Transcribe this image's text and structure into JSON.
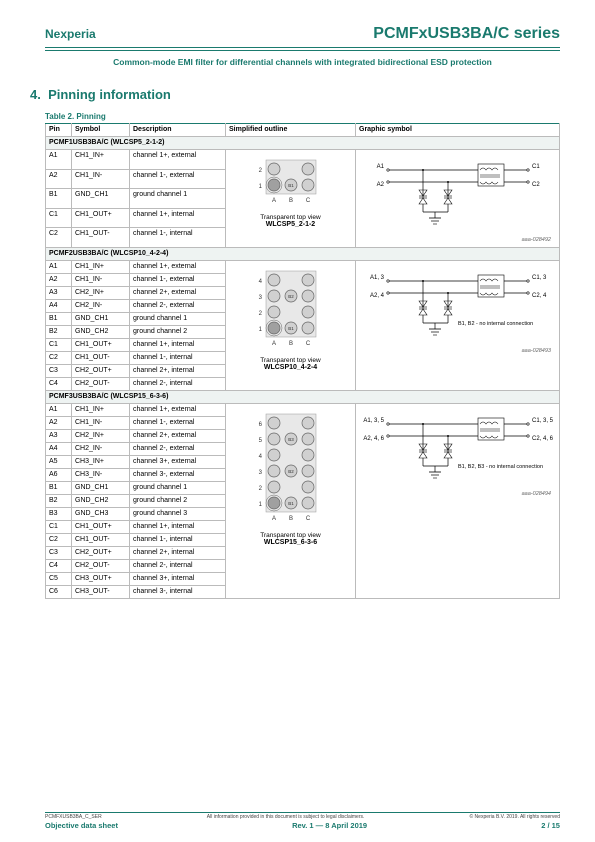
{
  "brand": "Nexperia",
  "title": "PCMFxUSB3BA/C series",
  "subtitle": "Common-mode EMI filter for differential channels with integrated bidirectional ESD protection",
  "section_number": "4.",
  "section_title": "Pinning information",
  "table_caption": "Table 2. Pinning",
  "headers": {
    "pin": "Pin",
    "symbol": "Symbol",
    "description": "Description",
    "outline": "Simplified outline",
    "graphic": "Graphic symbol"
  },
  "outline_caption": "Transparent top view",
  "part1": {
    "name": "PCMF1USB3BA/C (WLCSP5_2-1-2)",
    "pkg": "WLCSP5_2-1-2",
    "rows": [
      {
        "pin": "A1",
        "symbol": "CH1_IN+",
        "desc": "channel 1+, external"
      },
      {
        "pin": "A2",
        "symbol": "CH1_IN-",
        "desc": "channel 1-, external"
      },
      {
        "pin": "B1",
        "symbol": "GND_CH1",
        "desc": "ground channel 1"
      },
      {
        "pin": "C1",
        "symbol": "CH1_OUT+",
        "desc": "channel 1+, internal"
      },
      {
        "pin": "C2",
        "symbol": "CH1_OUT-",
        "desc": "channel 1-, internal"
      }
    ],
    "graphic": {
      "A1": "A1",
      "A2": "A2",
      "C1": "C1",
      "C2": "C2"
    },
    "ref": "aaa-028492"
  },
  "part2": {
    "name": "PCMF2USB3BA/C (WLCSP10_4-2-4)",
    "pkg": "WLCSP10_4-2-4",
    "rows": [
      {
        "pin": "A1",
        "symbol": "CH1_IN+",
        "desc": "channel 1+, external"
      },
      {
        "pin": "A2",
        "symbol": "CH1_IN-",
        "desc": "channel 1-, external"
      },
      {
        "pin": "A3",
        "symbol": "CH2_IN+",
        "desc": "channel 2+, external"
      },
      {
        "pin": "A4",
        "symbol": "CH2_IN-",
        "desc": "channel 2-, external"
      },
      {
        "pin": "B1",
        "symbol": "GND_CH1",
        "desc": "ground channel 1"
      },
      {
        "pin": "B2",
        "symbol": "GND_CH2",
        "desc": "ground channel 2"
      },
      {
        "pin": "C1",
        "symbol": "CH1_OUT+",
        "desc": "channel 1+, internal"
      },
      {
        "pin": "C2",
        "symbol": "CH1_OUT-",
        "desc": "channel 1-, internal"
      },
      {
        "pin": "C3",
        "symbol": "CH2_OUT+",
        "desc": "channel 2+, internal"
      },
      {
        "pin": "C4",
        "symbol": "CH2_OUT-",
        "desc": "channel 2-, internal"
      }
    ],
    "graphic": {
      "A": "A1, 3",
      "A2": "A2, 4",
      "C": "C1, 3",
      "C2": "C2, 4",
      "note": "B1, B2 - no internal connection"
    },
    "ref": "aaa-028493"
  },
  "part3": {
    "name": "PCMF3USB3BA/C (WLCSP15_6-3-6)",
    "pkg": "WLCSP15_6-3-6",
    "rows": [
      {
        "pin": "A1",
        "symbol": "CH1_IN+",
        "desc": "channel 1+, external"
      },
      {
        "pin": "A2",
        "symbol": "CH1_IN-",
        "desc": "channel 1-, external"
      },
      {
        "pin": "A3",
        "symbol": "CH2_IN+",
        "desc": "channel 2+, external"
      },
      {
        "pin": "A4",
        "symbol": "CH2_IN-",
        "desc": "channel 2-, external"
      },
      {
        "pin": "A5",
        "symbol": "CH3_IN+",
        "desc": "channel 3+, external"
      },
      {
        "pin": "A6",
        "symbol": "CH3_IN-",
        "desc": "channel 3-, external"
      },
      {
        "pin": "B1",
        "symbol": "GND_CH1",
        "desc": "ground channel 1"
      },
      {
        "pin": "B2",
        "symbol": "GND_CH2",
        "desc": "ground channel 2"
      },
      {
        "pin": "B3",
        "symbol": "GND_CH3",
        "desc": "ground channel 3"
      },
      {
        "pin": "C1",
        "symbol": "CH1_OUT+",
        "desc": "channel 1+, internal"
      },
      {
        "pin": "C2",
        "symbol": "CH1_OUT-",
        "desc": "channel 1-, internal"
      },
      {
        "pin": "C3",
        "symbol": "CH2_OUT+",
        "desc": "channel 2+, internal"
      },
      {
        "pin": "C4",
        "symbol": "CH2_OUT-",
        "desc": "channel 2-, internal"
      },
      {
        "pin": "C5",
        "symbol": "CH3_OUT+",
        "desc": "channel 3+, internal"
      },
      {
        "pin": "C6",
        "symbol": "CH3_OUT-",
        "desc": "channel 3-, internal"
      }
    ],
    "graphic": {
      "A": "A1, 3, 5",
      "A2": "A2, 4, 6",
      "C": "C1, 3, 5",
      "C2": "C2, 4, 6",
      "note": "B1, B2, B3 - no internal connection"
    },
    "ref": "aaa-028494"
  },
  "footer": {
    "doc_id": "PCMFXUSB3BA_C_SER",
    "disclaimer": "All information provided in this document is subject to legal disclaimers.",
    "copyright": "© Nexperia B.V. 2019. All rights reserved",
    "type": "Objective data sheet",
    "rev": "Rev. 1 — 8 April 2019",
    "page": "2 / 15"
  },
  "style": {
    "accent": "#1a7a6e",
    "ball_fill": "#d0d0d0",
    "pin1_fill": "#a0a0a0",
    "diagram_bg": "#e8e8e8"
  }
}
